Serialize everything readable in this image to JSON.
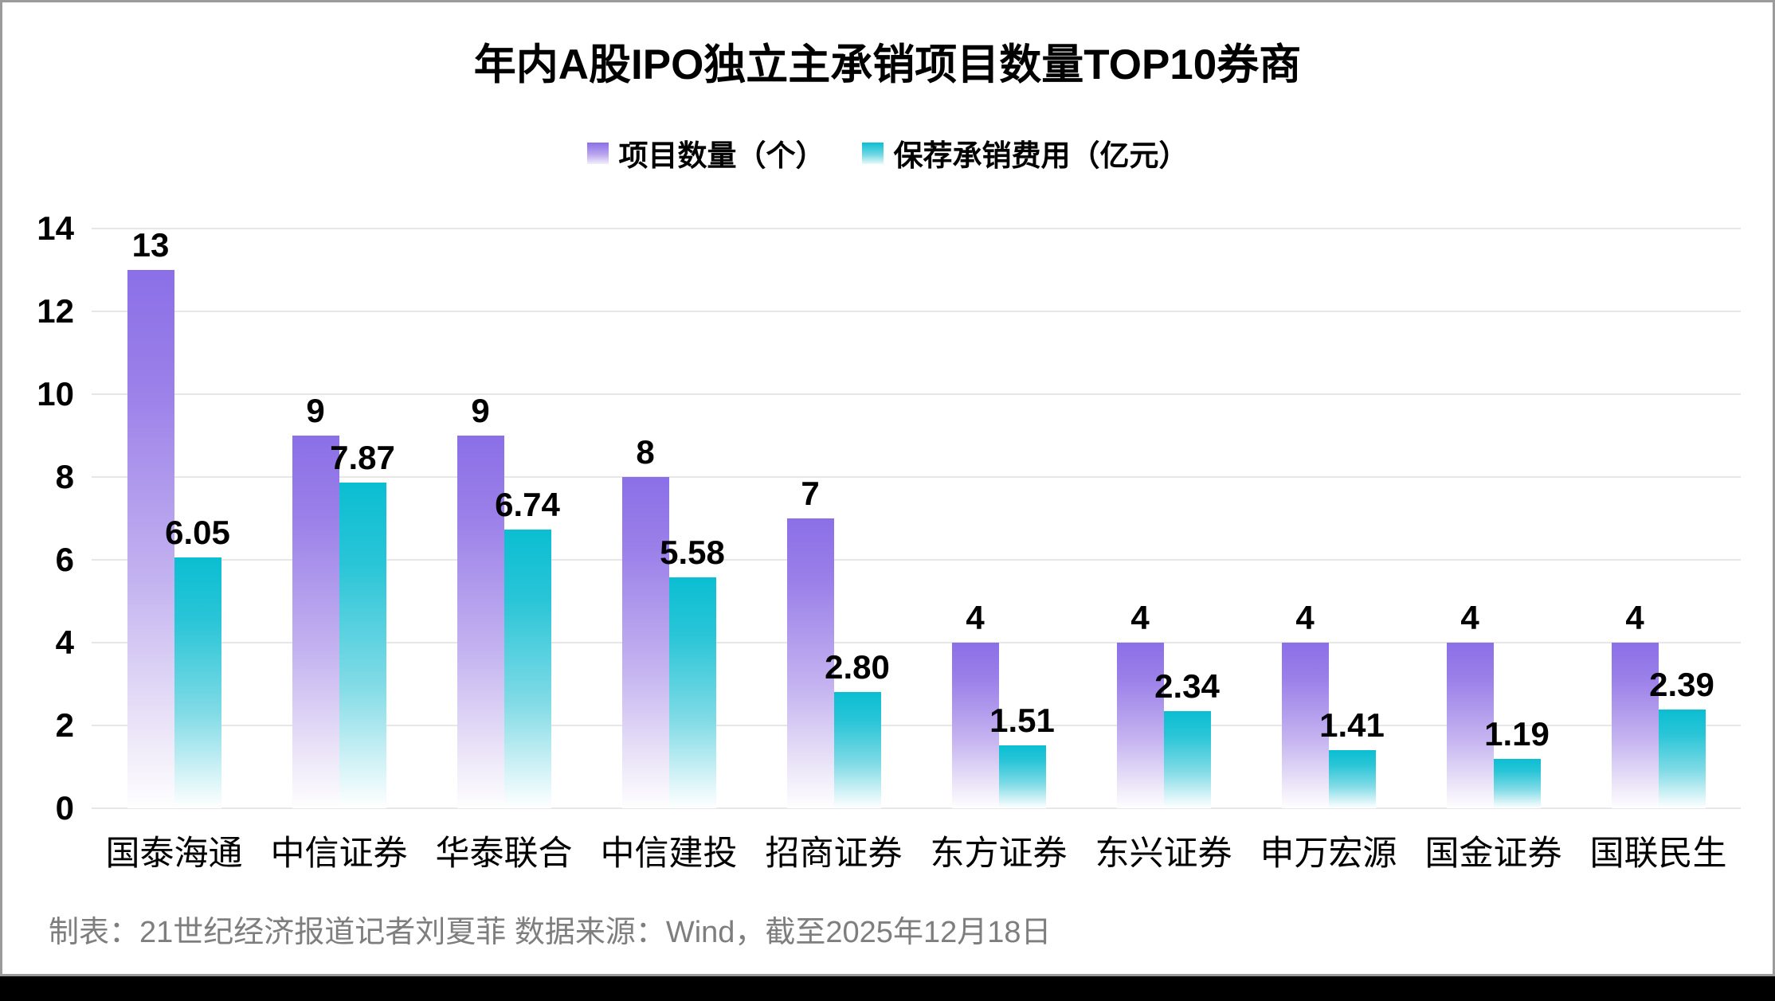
{
  "title": "年内A股IPO独立主承销项目数量TOP10券商",
  "footer": "制表：21世纪经济报道记者刘夏菲 数据来源：Wind，截至2025年12月18日",
  "legend": {
    "items": [
      {
        "label": "项目数量（个）",
        "swatch": "purple"
      },
      {
        "label": "保荐承销费用（亿元）",
        "swatch": "teal"
      }
    ]
  },
  "colors": {
    "purple_bar_top": "#8B6FE7",
    "teal_bar_top": "#0BBED2",
    "gridline": "#E7E7E7",
    "footer_text": "#7E7E7E",
    "window_border": "#9B9B9B",
    "bottom_strip": "#000000"
  },
  "chart_data": {
    "type": "bar",
    "title": "年内A股IPO独立主承销项目数量TOP10券商",
    "categories": [
      "国泰海通",
      "中信证券",
      "华泰联合",
      "中信建投",
      "招商证券",
      "东方证券",
      "东兴证券",
      "申万宏源",
      "国金证券",
      "国联民生"
    ],
    "series": [
      {
        "name": "项目数量（个）",
        "values": [
          13,
          9,
          9,
          8,
          7,
          4,
          4,
          4,
          4,
          4
        ],
        "labels": [
          "13",
          "9",
          "9",
          "8",
          "7",
          "4",
          "4",
          "4",
          "4",
          "4"
        ],
        "color": "#8B6FE7"
      },
      {
        "name": "保荐承销费用（亿元）",
        "values": [
          6.05,
          7.87,
          6.74,
          5.58,
          2.8,
          1.51,
          2.34,
          1.41,
          1.19,
          2.39
        ],
        "labels": [
          "6.05",
          "7.87",
          "6.74",
          "5.58",
          "2.80",
          "1.51",
          "2.34",
          "1.41",
          "1.19",
          "2.39"
        ],
        "color": "#0BBED2"
      }
    ],
    "xlabel": "",
    "ylabel": "",
    "ylim": [
      0,
      14
    ],
    "yticks": [
      0,
      2,
      4,
      6,
      8,
      10,
      12,
      14
    ],
    "grid": true,
    "legend_position": "top",
    "source_note": "制表：21世纪经济报道记者刘夏菲 数据来源：Wind，截至2025年12月18日"
  }
}
